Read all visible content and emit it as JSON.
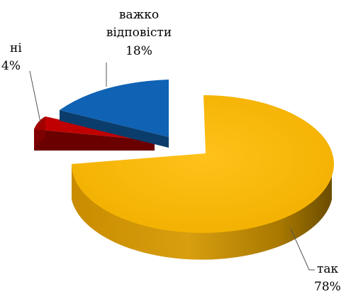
{
  "chart_data": {
    "type": "pie",
    "title": "",
    "series": [
      {
        "values": [
          78,
          4,
          18
        ]
      }
    ],
    "slices": [
      {
        "label": "так",
        "value": 78,
        "value_label": "78%",
        "color": "#f5b800",
        "exploded": true
      },
      {
        "label": "ні",
        "value": 4,
        "value_label": "4%",
        "color": "#c00000",
        "exploded": true
      },
      {
        "label": "важко відповісти",
        "label_lines": [
          "важко",
          "відповісти"
        ],
        "value": 18,
        "value_label": "18%",
        "color": "#0f62b4",
        "exploded": true
      }
    ],
    "legend": "none",
    "style": "3d-exploded"
  }
}
